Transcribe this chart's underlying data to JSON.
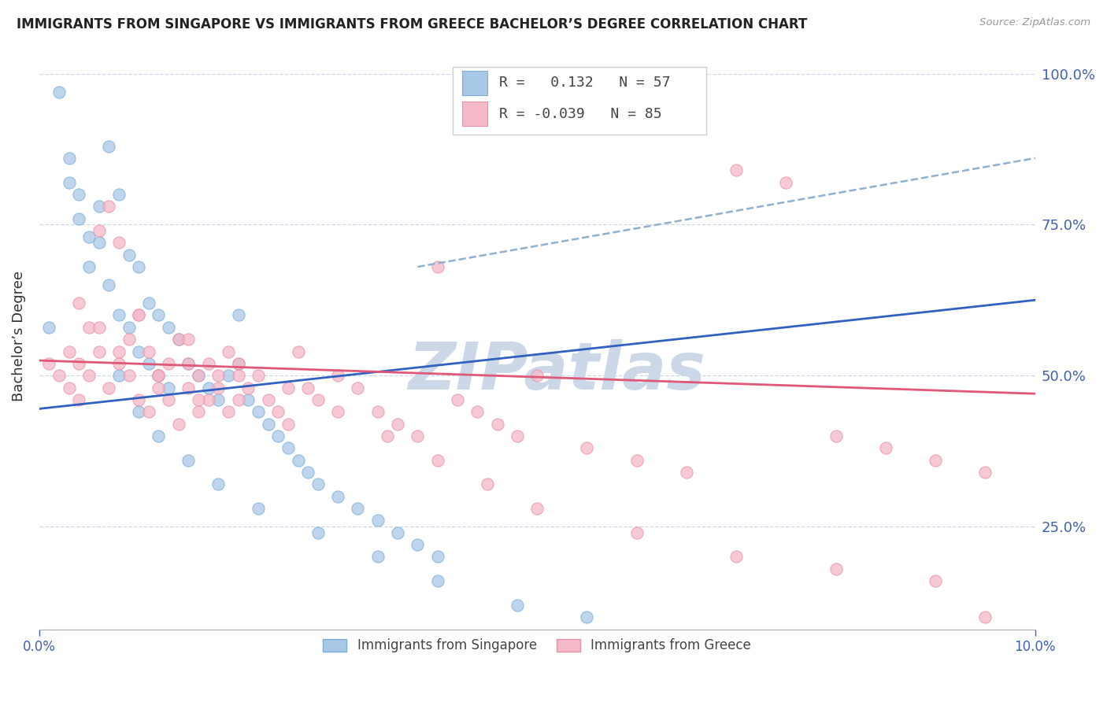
{
  "title": "IMMIGRANTS FROM SINGAPORE VS IMMIGRANTS FROM GREECE BACHELOR’S DEGREE CORRELATION CHART",
  "source": "Source: ZipAtlas.com",
  "ylabel": "Bachelor’s Degree",
  "r_singapore": 0.132,
  "n_singapore": 57,
  "r_greece": -0.039,
  "n_greece": 85,
  "singapore_color": "#a8c8e8",
  "singapore_edge_color": "#7aaed4",
  "greece_color": "#f5b8c8",
  "greece_edge_color": "#e890a8",
  "singapore_line_color": "#3060c0",
  "greece_line_color": "#e05878",
  "dashed_line_color": "#90b0d0",
  "watermark_text": "ZIPatlas",
  "watermark_color": "#ccd8e8",
  "xlim": [
    0.0,
    0.1
  ],
  "ylim": [
    0.08,
    1.05
  ],
  "yticks": [
    0.25,
    0.5,
    0.75,
    1.0
  ],
  "ytick_labels": [
    "25.0%",
    "50.0%",
    "75.0%",
    "100.0%"
  ],
  "grid_color": "#c8d8e8",
  "sing_line_x0": 0.0,
  "sing_line_y0": 0.445,
  "sing_line_x1": 0.1,
  "sing_line_y1": 0.625,
  "greece_line_x0": 0.0,
  "greece_line_y0": 0.525,
  "greece_line_x1": 0.1,
  "greece_line_y1": 0.47,
  "dashed_line_x0": 0.038,
  "dashed_line_y0": 0.68,
  "dashed_line_x1": 0.1,
  "dashed_line_y1": 0.86,
  "sing_scatter_x": [
    0.001,
    0.002,
    0.003,
    0.003,
    0.004,
    0.004,
    0.005,
    0.005,
    0.006,
    0.006,
    0.007,
    0.007,
    0.008,
    0.008,
    0.009,
    0.009,
    0.01,
    0.01,
    0.011,
    0.011,
    0.012,
    0.012,
    0.013,
    0.013,
    0.014,
    0.015,
    0.016,
    0.017,
    0.018,
    0.019,
    0.02,
    0.021,
    0.022,
    0.023,
    0.024,
    0.025,
    0.026,
    0.027,
    0.028,
    0.03,
    0.032,
    0.034,
    0.036,
    0.038,
    0.04,
    0.02,
    0.008,
    0.01,
    0.012,
    0.015,
    0.018,
    0.022,
    0.028,
    0.034,
    0.04,
    0.048,
    0.055
  ],
  "sing_scatter_y": [
    0.58,
    0.97,
    0.86,
    0.82,
    0.8,
    0.76,
    0.73,
    0.68,
    0.78,
    0.72,
    0.88,
    0.65,
    0.8,
    0.6,
    0.7,
    0.58,
    0.68,
    0.54,
    0.62,
    0.52,
    0.6,
    0.5,
    0.58,
    0.48,
    0.56,
    0.52,
    0.5,
    0.48,
    0.46,
    0.5,
    0.52,
    0.46,
    0.44,
    0.42,
    0.4,
    0.38,
    0.36,
    0.34,
    0.32,
    0.3,
    0.28,
    0.26,
    0.24,
    0.22,
    0.2,
    0.6,
    0.5,
    0.44,
    0.4,
    0.36,
    0.32,
    0.28,
    0.24,
    0.2,
    0.16,
    0.12,
    0.1
  ],
  "greece_scatter_x": [
    0.001,
    0.002,
    0.003,
    0.003,
    0.004,
    0.004,
    0.005,
    0.005,
    0.006,
    0.006,
    0.007,
    0.007,
    0.008,
    0.008,
    0.009,
    0.009,
    0.01,
    0.01,
    0.011,
    0.011,
    0.012,
    0.012,
    0.013,
    0.013,
    0.014,
    0.014,
    0.015,
    0.015,
    0.016,
    0.016,
    0.017,
    0.017,
    0.018,
    0.018,
    0.019,
    0.019,
    0.02,
    0.02,
    0.021,
    0.022,
    0.023,
    0.024,
    0.025,
    0.026,
    0.027,
    0.028,
    0.03,
    0.032,
    0.034,
    0.036,
    0.038,
    0.04,
    0.042,
    0.044,
    0.046,
    0.048,
    0.05,
    0.055,
    0.06,
    0.065,
    0.07,
    0.075,
    0.08,
    0.085,
    0.09,
    0.095,
    0.01,
    0.015,
    0.02,
    0.025,
    0.03,
    0.035,
    0.04,
    0.045,
    0.05,
    0.06,
    0.07,
    0.08,
    0.09,
    0.095,
    0.004,
    0.006,
    0.008,
    0.012,
    0.016
  ],
  "greece_scatter_y": [
    0.52,
    0.5,
    0.54,
    0.48,
    0.52,
    0.46,
    0.58,
    0.5,
    0.74,
    0.54,
    0.78,
    0.48,
    0.72,
    0.52,
    0.56,
    0.5,
    0.6,
    0.46,
    0.54,
    0.44,
    0.5,
    0.48,
    0.52,
    0.46,
    0.56,
    0.42,
    0.52,
    0.48,
    0.5,
    0.44,
    0.46,
    0.52,
    0.48,
    0.5,
    0.44,
    0.54,
    0.5,
    0.46,
    0.48,
    0.5,
    0.46,
    0.44,
    0.42,
    0.54,
    0.48,
    0.46,
    0.5,
    0.48,
    0.44,
    0.42,
    0.4,
    0.68,
    0.46,
    0.44,
    0.42,
    0.4,
    0.5,
    0.38,
    0.36,
    0.34,
    0.84,
    0.82,
    0.4,
    0.38,
    0.36,
    0.34,
    0.6,
    0.56,
    0.52,
    0.48,
    0.44,
    0.4,
    0.36,
    0.32,
    0.28,
    0.24,
    0.2,
    0.18,
    0.16,
    0.1,
    0.62,
    0.58,
    0.54,
    0.5,
    0.46
  ]
}
